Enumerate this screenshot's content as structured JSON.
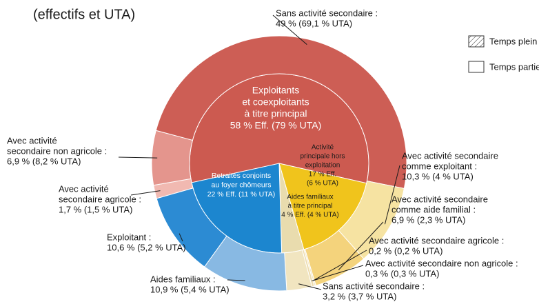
{
  "chart_data": {
    "type": "nested_pie",
    "title": "(effectifs et UTA)",
    "legend": [
      "Temps plein",
      "Temps partiel"
    ],
    "inner": {
      "categories": [
        [
          "Exploitants",
          "et coexploitants",
          "à titre principal"
        ],
        [
          "Activité",
          "principale hors",
          "exploitation"
        ],
        [
          "Aides familiaux",
          "à titre principal"
        ],
        [
          "Retraités conjoints",
          "au foyer chômeurs"
        ]
      ],
      "values": [
        58,
        17,
        4,
        22
      ],
      "value_labels": [
        [
          "58 % Eff. (79 % UTA)"
        ],
        [
          "17 % Eff.",
          "(6 % UTA)"
        ],
        [
          "4 % Eff. (4 % UTA)"
        ],
        [
          "22 % Eff. (11 % UTA)"
        ]
      ],
      "colors": [
        "#cc5a50",
        "#f0c41c",
        "#e9dcae",
        "#1c86cf"
      ]
    },
    "outer": {
      "categories": [
        [
          "Avec activité",
          "secondaire agricole :"
        ],
        [
          "Avec activité",
          "secondaire non agricole :"
        ],
        [
          "Sans activité secondaire :"
        ],
        [
          "Avec activité secondaire",
          "comme exploitant :"
        ],
        [
          "Avec activité secondaire",
          "comme aide familial :"
        ],
        [
          "Avec activité secondaire agricole :"
        ],
        [
          "Avec activité secondaire non agricole :"
        ],
        [
          "Sans activité secondaire :"
        ],
        [
          "Aides familiaux :"
        ],
        [
          "Exploitant :"
        ]
      ],
      "values": [
        1.7,
        6.9,
        49,
        10.3,
        6.9,
        0.2,
        0.3,
        3.2,
        10.9,
        10.6
      ],
      "value_labels": [
        "1,7 % (1,5 % UTA)",
        "6,9 % (8,2 % UTA)",
        "49 % (69,1 % UTA)",
        "10,3 % (4 % UTA)",
        "6,9 % (2,3 % UTA)",
        "0,2 % (0,2 % UTA)",
        "0,3 % (0,3 % UTA)",
        "3,2 % (3,7 % UTA)",
        "10,9 % (5,4 % UTA)",
        "10,6 % (5,2 % UTA)"
      ],
      "colors": [
        "#f1b9b1",
        "#e4958d",
        "#cd5e55",
        "#f6e3a2",
        "#f4d37c",
        "#f3e6c2",
        "#eddcae",
        "#f1e5c0",
        "#88b9e3",
        "#2c8bd3"
      ]
    }
  }
}
